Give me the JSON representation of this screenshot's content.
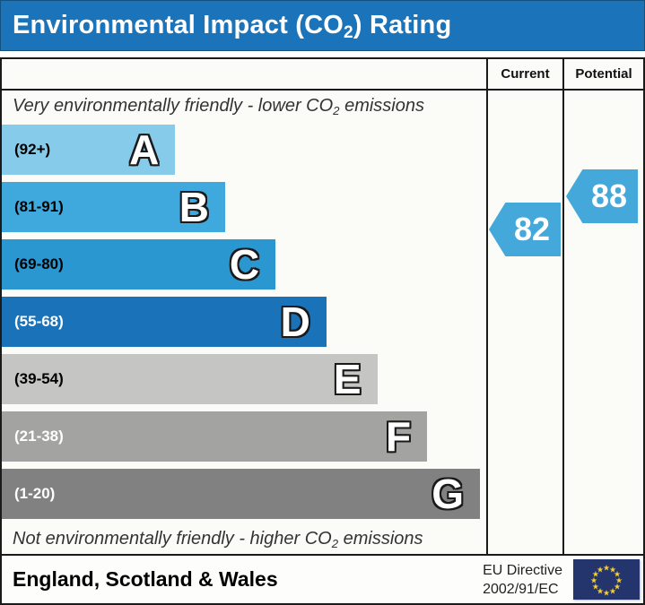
{
  "header": {
    "title_pre": "Environmental Impact (CO",
    "title_sub": "2",
    "title_post": ") Rating"
  },
  "table": {
    "current_header": "Current",
    "potential_header": "Potential"
  },
  "notes": {
    "top_pre": "Very environmentally friendly - lower CO",
    "top_sub": "2",
    "top_post": " emissions",
    "bottom_pre": "Not environmentally friendly - higher CO",
    "bottom_sub": "2",
    "bottom_post": " emissions"
  },
  "chart_data": {
    "type": "bar",
    "title": "Environmental Impact (CO2) Rating",
    "bands": [
      {
        "letter": "A",
        "range": "(92+)",
        "min": 92,
        "max": 100,
        "color": "#86cbea",
        "label_color": "#000000",
        "width_pct": 35.8
      },
      {
        "letter": "B",
        "range": "(81-91)",
        "min": 81,
        "max": 91,
        "color": "#3fa8dc",
        "label_color": "#000000",
        "width_pct": 46.1
      },
      {
        "letter": "C",
        "range": "(69-80)",
        "min": 69,
        "max": 80,
        "color": "#2b97d1",
        "label_color": "#000000",
        "width_pct": 56.5
      },
      {
        "letter": "D",
        "range": "(55-68)",
        "min": 55,
        "max": 68,
        "color": "#1a72b8",
        "label_color": "#ffffff",
        "width_pct": 67.0
      },
      {
        "letter": "E",
        "range": "(39-54)",
        "min": 39,
        "max": 54,
        "color": "#c5c5c3",
        "label_color": "#000000",
        "width_pct": 77.5
      },
      {
        "letter": "F",
        "range": "(21-38)",
        "min": 21,
        "max": 38,
        "color": "#a3a3a1",
        "label_color": "#ffffff",
        "width_pct": 87.8
      },
      {
        "letter": "G",
        "range": "(1-20)",
        "min": 1,
        "max": 20,
        "color": "#818181",
        "label_color": "#ffffff",
        "width_pct": 98.7
      }
    ],
    "current": 82,
    "potential": 88,
    "arrow_color": "#44a9da"
  },
  "footer": {
    "region": "England, Scotland & Wales",
    "directive_line1": "EU Directive",
    "directive_line2": "2002/91/EC"
  },
  "colors": {
    "title_bar": "#1b74ba",
    "flag_bg": "#24356e",
    "flag_star": "#f8d030"
  }
}
